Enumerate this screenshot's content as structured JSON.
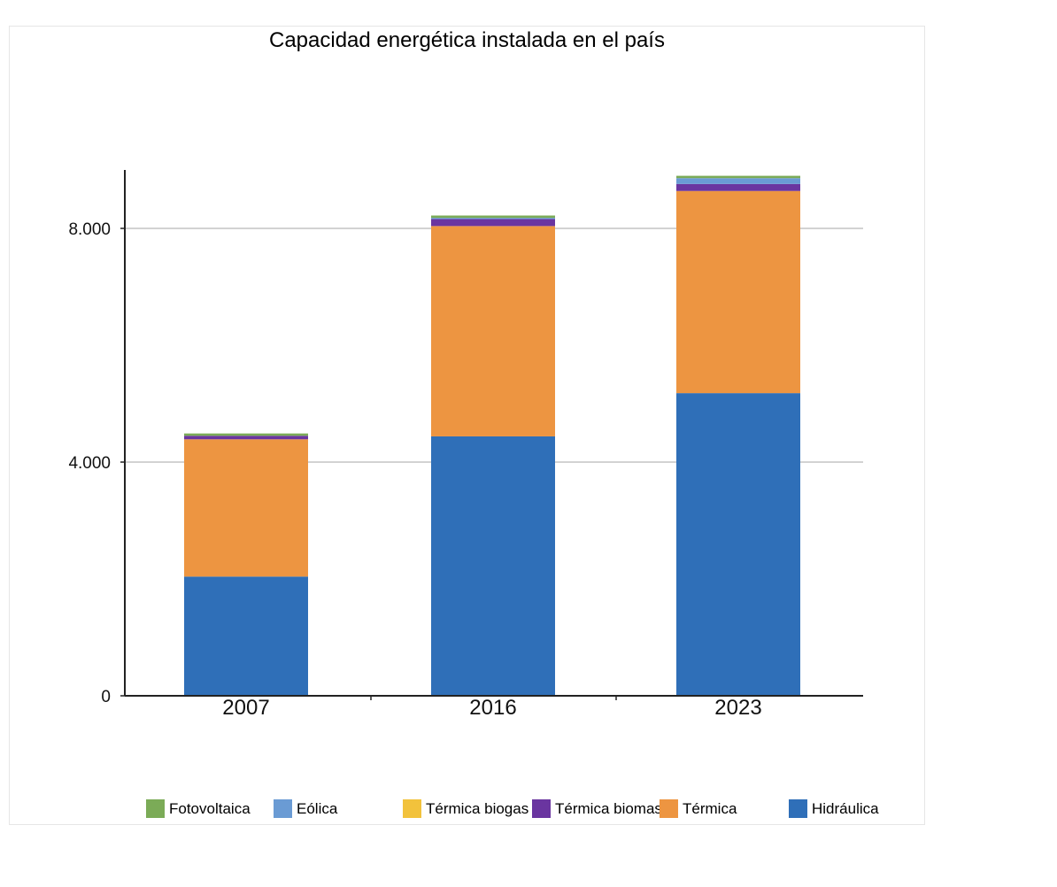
{
  "chart_data": {
    "type": "bar",
    "stacked": true,
    "title": "Capacidad energética instalada en el país",
    "xlabel": "",
    "ylabel": "",
    "categories": [
      "2007",
      "2016",
      "2023"
    ],
    "ylim": [
      0,
      9000
    ],
    "yticks": [
      {
        "value": 0,
        "label": "0"
      },
      {
        "value": 4000,
        "label": "4.000"
      },
      {
        "value": 8000,
        "label": "8.000"
      }
    ],
    "grid": true,
    "legend_position": "bottom",
    "series": [
      {
        "name": "Hidráulica",
        "color": "#2f6fb8",
        "values": [
          2040,
          4440,
          5180
        ]
      },
      {
        "name": "Térmica",
        "color": "#ed9541",
        "values": [
          2350,
          3600,
          3460
        ]
      },
      {
        "name": "Térmica biomasa",
        "color": "#6a35a0",
        "values": [
          60,
          120,
          120
        ]
      },
      {
        "name": "Térmica biogas",
        "color": "#f2c23c",
        "values": [
          0,
          0,
          0
        ]
      },
      {
        "name": "Eólica",
        "color": "#6a9bd4",
        "values": [
          0,
          20,
          100
        ]
      },
      {
        "name": "Fotovoltaica",
        "color": "#7bab57",
        "values": [
          40,
          40,
          40
        ]
      }
    ],
    "legend": [
      {
        "label": "Fotovoltaica",
        "color": "#7bab57"
      },
      {
        "label": "Eólica",
        "color": "#6a9bd4"
      },
      {
        "label": "Térmica biogas",
        "color": "#f2c23c"
      },
      {
        "label": "Térmica biomasa",
        "color": "#6a35a0"
      },
      {
        "label": "Térmica",
        "color": "#ed9541"
      },
      {
        "label": "Hidráulica",
        "color": "#2f6fb8"
      }
    ]
  }
}
